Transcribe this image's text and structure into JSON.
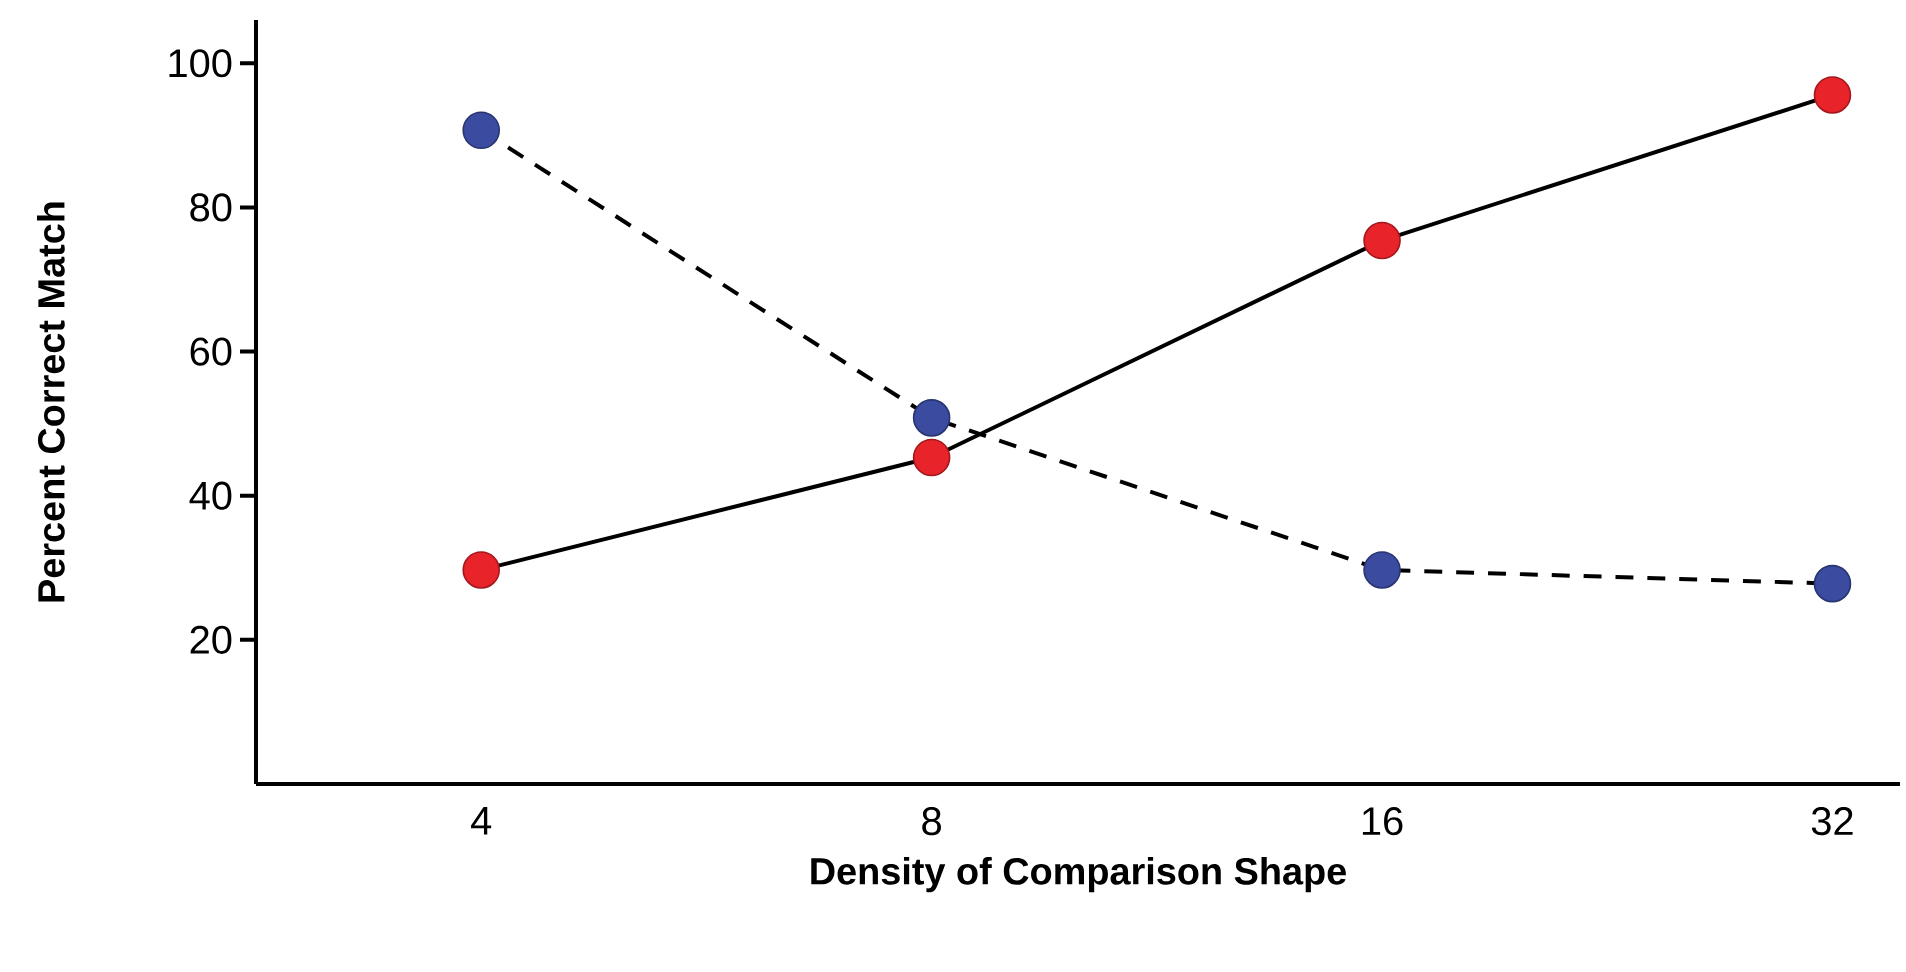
{
  "chart_data": {
    "type": "line",
    "xlabel": "Density of Comparison Shape",
    "ylabel": "Percent Correct Match",
    "categories": [
      "4",
      "8",
      "16",
      "32"
    ],
    "series": [
      {
        "color": "#e8232a",
        "line_style": "solid",
        "values": [
          29.7,
          45.3,
          75.4,
          95.6
        ]
      },
      {
        "color": "#3a4ba0",
        "line_style": "dashed",
        "values": [
          90.7,
          50.8,
          29.7,
          27.8
        ]
      }
    ],
    "ylim": [
      0,
      106
    ],
    "yticks": [
      20,
      40,
      60,
      80,
      100
    ],
    "marker": "circle"
  }
}
